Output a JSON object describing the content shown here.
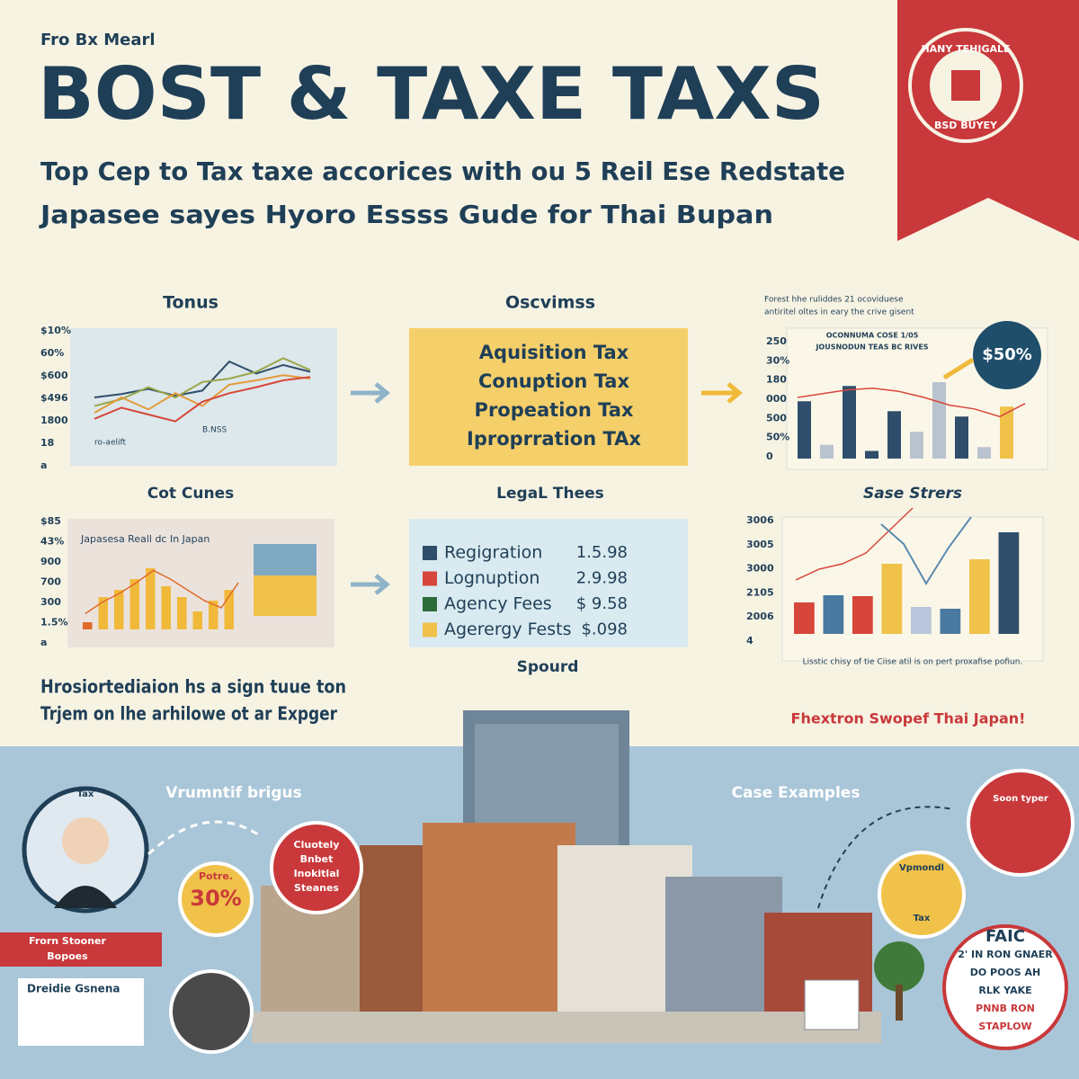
{
  "header": {
    "kicker": "Fro Bx Mearl",
    "title": "BOST & TAXE TAXS",
    "subtitle": [
      "Top Cep to Tax taxe accorices with ou 5 Reil Ese Redstate",
      "Japasee sayes Hyoro Essss Gude for Thai Bupan"
    ]
  },
  "badge": {
    "top": "HANY TEHIGALE",
    "bottom": "BSD BUYEY"
  },
  "tonus": {
    "title": "Tonus",
    "yticks": [
      "$10%",
      "60%",
      "$600",
      "$496",
      "1800",
      "18",
      "a"
    ],
    "notes": [
      "ro-aelift",
      "B.NSS"
    ],
    "lines": [
      {
        "color": "#2f4e6b",
        "values": [
          40,
          44,
          50,
          42,
          48,
          82,
          68,
          78,
          70
        ]
      },
      {
        "color": "#9aa84a",
        "values": [
          30,
          38,
          52,
          40,
          58,
          62,
          70,
          86,
          72
        ]
      },
      {
        "color": "#e39a3a",
        "values": [
          22,
          40,
          26,
          45,
          30,
          55,
          60,
          66,
          62
        ]
      },
      {
        "color": "#d7463a",
        "values": [
          15,
          28,
          20,
          12,
          35,
          45,
          52,
          60,
          64
        ]
      }
    ]
  },
  "oscvimss": {
    "title": "Oscvimss",
    "items": [
      "Aquisition Tax",
      "Conuption Tax",
      "Propeation Tax",
      "Iproprration TAx"
    ]
  },
  "rates": {
    "note": [
      "Forest hhe ruliddes 21 ocoviduese",
      "antiritel oltes in eary the crive gisent"
    ],
    "headings": [
      "OCONNUMA COSE 1/05",
      "JOUSNODUN TEAS BC RIVES"
    ],
    "yticks": [
      "250",
      "30%",
      "180",
      "000",
      "500",
      "50%",
      "0"
    ],
    "badge": "$50%",
    "bars": [
      {
        "color": "#2f4e6b",
        "value": 75
      },
      {
        "color": "#b9c3cf",
        "value": 18
      },
      {
        "color": "#2f4e6b",
        "value": 95
      },
      {
        "color": "#2f4e6b",
        "value": 10
      },
      {
        "color": "#2f4e6b",
        "value": 62
      },
      {
        "color": "#b9c3cf",
        "value": 35
      },
      {
        "color": "#b9c3cf",
        "value": 100
      },
      {
        "color": "#2f4e6b",
        "value": 55
      },
      {
        "color": "#b9c3cf",
        "value": 15
      },
      {
        "color": "#f0c24a",
        "value": 68
      }
    ],
    "line": [
      80,
      85,
      90,
      92,
      88,
      80,
      70,
      65,
      55,
      72
    ]
  },
  "cot": {
    "title": "Cot Cunes",
    "inner_title": "Japasesa Reall dc In Japan",
    "yticks": [
      "$85",
      "43%",
      "900",
      "700",
      "300",
      "1.5%",
      "a"
    ],
    "bars": [
      10,
      45,
      55,
      70,
      85,
      60,
      45,
      25,
      40,
      55
    ],
    "line": [
      22,
      38,
      50,
      65,
      82,
      70,
      55,
      40,
      30,
      65
    ]
  },
  "legal": {
    "title": "LegaL Thees",
    "items": [
      {
        "label": "Regigration",
        "amount": "1.5.98",
        "color": "#2f4e6b"
      },
      {
        "label": "Lognuption",
        "amount": "2.9.98",
        "color": "#d7463a"
      },
      {
        "label": "Agency Fees",
        "amount": "$ 9.58",
        "color": "#2e6b3a"
      },
      {
        "label": "Agerergy Fests",
        "amount": "$.098",
        "color": "#f0c24a"
      }
    ]
  },
  "sase": {
    "title": "Sase Strers",
    "yticks": [
      "3006",
      "3005",
      "3000",
      "2105",
      "2006",
      "4"
    ],
    "bars": [
      {
        "color": "#d7463a",
        "value": 35
      },
      {
        "color": "#4a7aa0",
        "value": 43
      },
      {
        "color": "#d7463a",
        "value": 42
      },
      {
        "color": "#f0c24a",
        "value": 78
      },
      {
        "color": "#b9c6dc",
        "value": 30
      },
      {
        "color": "#4a7aa0",
        "value": 28
      },
      {
        "color": "#f0c24a",
        "value": 83
      },
      {
        "color": "#2f4e6b",
        "value": 113
      }
    ],
    "line_red": [
      60,
      72,
      78,
      90,
      115,
      140
    ],
    "line_blue": [
      122,
      100,
      56,
      96,
      130
    ],
    "caption": "Lisstic chisy of tie Ciise atil is on pert proxafise pofiun."
  },
  "spourd": "Spourd",
  "intro": [
    "Hrosiortediaion hs a sign tuue ton",
    "Trjem on lhe arhilowe ot ar Expger"
  ],
  "tagline": "Fhextron Swopef Thai Japan!",
  "bottom": {
    "left_heading": "Vrumntif brigus",
    "right_heading": "Case Examples",
    "portrait_label": "Tax",
    "banner": [
      "Frorn Stooner",
      "Bopoes"
    ],
    "rate_label": "Potre.",
    "rate_value": "30%",
    "red_bubble": [
      "Cluotely",
      "Bnbet",
      "Inokitlal",
      "Steanes"
    ],
    "card_title": "Dreidie Gsnena",
    "right_red": "Soon typer",
    "right_yellow": [
      "Vpmondl",
      "Tax"
    ],
    "faic": [
      "FAIC",
      "2' IN RON GNAER",
      "DO POOS AH",
      "RLK YAKE",
      "PNNB RON",
      "STAPLOW"
    ]
  }
}
